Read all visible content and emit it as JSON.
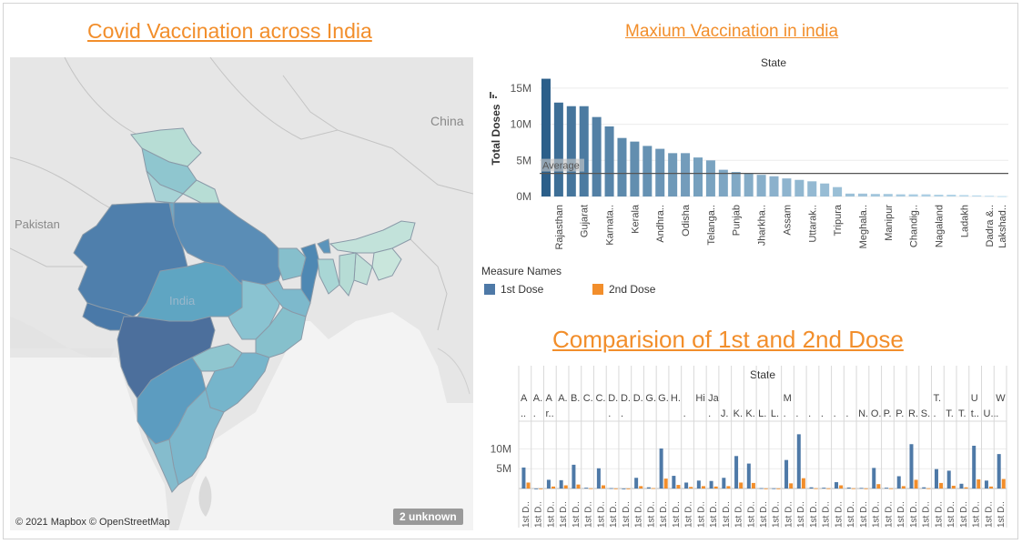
{
  "titles": {
    "map": "Covid Vaccination across India",
    "top_chart": "Maxium Vaccination in india",
    "bottom_chart": "Comparision  of 1st and 2nd Dose"
  },
  "map": {
    "labels": {
      "pakistan": "Pakistan",
      "china": "China",
      "india": "India"
    },
    "credit": "© 2021 Mapbox © OpenStreetMap",
    "unknown_badge": "2 unknown"
  },
  "legend": {
    "title": "Measure Names",
    "items": [
      {
        "label": "1st Dose",
        "color": "#4e79a7"
      },
      {
        "label": "2nd Dose",
        "color": "#f28e2b"
      }
    ]
  },
  "colors": {
    "accent": "#f28e2b",
    "dose1": "#4e79a7",
    "dose2": "#f28e2b"
  },
  "chart_data": [
    {
      "type": "bar",
      "header": "State",
      "ylabel": "Total Doses",
      "y_ticks": [
        "0M",
        "5M",
        "10M",
        "15M"
      ],
      "ylim": [
        0,
        17000000
      ],
      "reference_line": {
        "label": "Average",
        "value": 3200000
      },
      "printed_tick_labels": [
        "Rajasthan",
        "Gujarat",
        "Karnata..",
        "Kerala",
        "Andhra..",
        "Odisha",
        "Telanga..",
        "Punjab",
        "Jharkha..",
        "Assam",
        "Uttarak..",
        "Tripura",
        "Meghala..",
        "Manipur",
        "Chandig..",
        "Nagaland",
        "Ladakh",
        "Dadra &..",
        "Lakshad.."
      ],
      "categories": [
        "",
        "Rajasthan",
        "",
        "Gujarat",
        "",
        "Karnata..",
        "",
        "Kerala",
        "",
        "Andhra..",
        "",
        "Odisha",
        "",
        "Telanga..",
        "",
        "Punjab",
        "",
        "Jharkha..",
        "",
        "Assam",
        "",
        "Uttarak..",
        "",
        "Tripura",
        "",
        "Meghala..",
        "",
        "Manipur",
        "",
        "Chandig..",
        "",
        "Nagaland",
        "",
        "Ladakh",
        "",
        "Dadra &..",
        "Lakshad.."
      ],
      "values": [
        16300000,
        13000000,
        12500000,
        12500000,
        11000000,
        9700000,
        8100000,
        7600000,
        7000000,
        6600000,
        6000000,
        6000000,
        5400000,
        5000000,
        3700000,
        3400000,
        3200000,
        3000000,
        2800000,
        2500000,
        2300000,
        2100000,
        1800000,
        1300000,
        400000,
        400000,
        350000,
        350000,
        300000,
        300000,
        300000,
        250000,
        250000,
        200000,
        150000,
        100000,
        50000
      ],
      "color_ramp": [
        "#2c5f8a",
        "#bcdcee"
      ]
    },
    {
      "type": "bar",
      "header": "State",
      "y_ticks": [
        "5M",
        "10M"
      ],
      "ylim": [
        0,
        17000000
      ],
      "columns": [
        {
          "l1": "A",
          "l2": "..",
          "x": "1st D..",
          "v1": 5300000,
          "v2": 1500000
        },
        {
          "l1": "A.",
          "l2": ".",
          "x": "1st D..",
          "v1": 0,
          "v2": 0
        },
        {
          "l1": "A",
          "l2": "r..",
          "x": "1st D..",
          "v1": 2200000,
          "v2": 500000
        },
        {
          "l1": "A.",
          "l2": "",
          "x": "1st D..",
          "v1": 2100000,
          "v2": 800000
        },
        {
          "l1": "B.",
          "l2": "",
          "x": "1st D..",
          "v1": 6000000,
          "v2": 1000000
        },
        {
          "l1": "C.",
          "l2": "",
          "x": "1st D..",
          "v1": 200000,
          "v2": 50000
        },
        {
          "l1": "C.",
          "l2": "",
          "x": "1st D..",
          "v1": 5100000,
          "v2": 800000
        },
        {
          "l1": "D.",
          "l2": ".",
          "x": "1st D..",
          "v1": 100000,
          "v2": 20000
        },
        {
          "l1": "D.",
          "l2": ".",
          "x": "1st D..",
          "v1": 0,
          "v2": 0
        },
        {
          "l1": "D.",
          "l2": "",
          "x": "1st D..",
          "v1": 2700000,
          "v2": 600000
        },
        {
          "l1": "G.",
          "l2": "",
          "x": "1st D..",
          "v1": 300000,
          "v2": 100000
        },
        {
          "l1": "G.",
          "l2": "",
          "x": "1st D..",
          "v1": 10100000,
          "v2": 2500000
        },
        {
          "l1": "H.",
          "l2": "",
          "x": "1st D..",
          "v1": 3200000,
          "v2": 900000
        },
        {
          "l1": "",
          "l2": ".",
          "x": "1st D..",
          "v1": 1500000,
          "v2": 400000
        },
        {
          "l1": "Hi",
          "l2": "",
          "x": "1st D..",
          "v1": 2000000,
          "v2": 600000
        },
        {
          "l1": "Ja",
          "l2": ".",
          "x": "1st D..",
          "v1": 1900000,
          "v2": 500000
        },
        {
          "l1": "",
          "l2": "J.",
          "x": "1st D..",
          "v1": 2700000,
          "v2": 600000
        },
        {
          "l1": "",
          "l2": "K.",
          "x": "1st D..",
          "v1": 8200000,
          "v2": 1500000
        },
        {
          "l1": "",
          "l2": "K.",
          "x": "1st D..",
          "v1": 6300000,
          "v2": 1400000
        },
        {
          "l1": "",
          "l2": "L.",
          "x": "1st D..",
          "v1": 100000,
          "v2": 20000
        },
        {
          "l1": "",
          "l2": "L.",
          "x": "1st D..",
          "v1": 50000,
          "v2": 10000
        },
        {
          "l1": "M",
          "l2": ".",
          "x": "1st D..",
          "v1": 7200000,
          "v2": 1300000
        },
        {
          "l1": "",
          "l2": ".",
          "x": "1st D..",
          "v1": 13700000,
          "v2": 2600000
        },
        {
          "l1": "",
          "l2": ".",
          "x": "1st D..",
          "v1": 300000,
          "v2": 60000
        },
        {
          "l1": "",
          "l2": ".",
          "x": "1st D..",
          "v1": 200000,
          "v2": 40000
        },
        {
          "l1": "",
          "l2": ".",
          "x": "1st D..",
          "v1": 1600000,
          "v2": 800000
        },
        {
          "l1": "",
          "l2": ".",
          "x": "1st D..",
          "v1": 250000,
          "v2": 50000
        },
        {
          "l1": "",
          "l2": "N.",
          "x": "1st D..",
          "v1": 150000,
          "v2": 30000
        },
        {
          "l1": "",
          "l2": "O.",
          "x": "1st D..",
          "v1": 5200000,
          "v2": 1100000
        },
        {
          "l1": "",
          "l2": "P.",
          "x": "1st D..",
          "v1": 200000,
          "v2": 40000
        },
        {
          "l1": "",
          "l2": "P.",
          "x": "1st D..",
          "v1": 3100000,
          "v2": 600000
        },
        {
          "l1": "",
          "l2": "R.",
          "x": "1st D..",
          "v1": 11200000,
          "v2": 2200000
        },
        {
          "l1": "",
          "l2": "S.",
          "x": "1st D..",
          "v1": 300000,
          "v2": 50000
        },
        {
          "l1": "T.",
          "l2": ".",
          "x": "1st D..",
          "v1": 4900000,
          "v2": 1400000
        },
        {
          "l1": "",
          "l2": "T.",
          "x": "1st D..",
          "v1": 4500000,
          "v2": 700000
        },
        {
          "l1": "",
          "l2": "T.",
          "x": "1st D..",
          "v1": 1200000,
          "v2": 300000
        },
        {
          "l1": "U",
          "l2": "t..",
          "x": "1st D..",
          "v1": 10800000,
          "v2": 2300000
        },
        {
          "l1": "",
          "l2": "U..",
          "x": "1st D..",
          "v1": 2000000,
          "v2": 500000
        },
        {
          "l1": "W",
          "l2": ".",
          "x": "1st D..",
          "v1": 8700000,
          "v2": 2400000
        }
      ]
    }
  ]
}
